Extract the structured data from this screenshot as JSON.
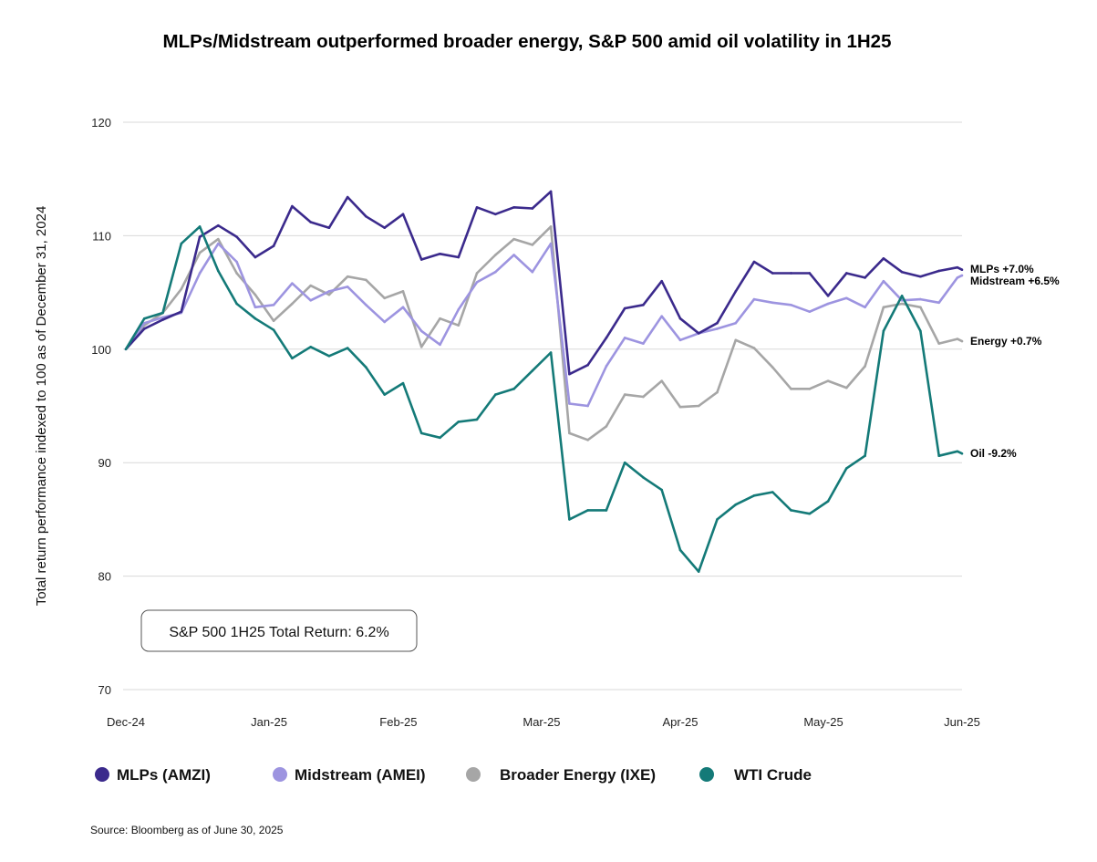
{
  "chart_data": {
    "type": "line",
    "title": "MLPs/Midstream outperformed broader energy, S&P 500 amid oil volatility in 1H25",
    "ylabel": "Total return performance indexed to 100 as of December 31, 2024",
    "xlabel": "",
    "ylim": [
      70,
      120
    ],
    "yticks": [
      "70",
      "80",
      "90",
      "100",
      "110",
      "120"
    ],
    "xlim": [
      "2024-12-31",
      "2025-06-30"
    ],
    "xticks": [
      {
        "date": "2024-12-31",
        "label": "Dec-24"
      },
      {
        "date": "2025-01-31",
        "label": "Jan-25"
      },
      {
        "date": "2025-02-28",
        "label": "Feb-25"
      },
      {
        "date": "2025-03-31",
        "label": "Mar-25"
      },
      {
        "date": "2025-04-30",
        "label": "Apr-25"
      },
      {
        "date": "2025-05-31",
        "label": "May-25"
      },
      {
        "date": "2025-06-30",
        "label": "Jun-25"
      }
    ],
    "grid": true,
    "legend_position": "bottom",
    "x": [
      "2024-12-31",
      "2025-01-04",
      "2025-01-08",
      "2025-01-12",
      "2025-01-16",
      "2025-01-20",
      "2025-01-24",
      "2025-01-28",
      "2025-02-01",
      "2025-02-05",
      "2025-02-09",
      "2025-02-13",
      "2025-02-17",
      "2025-02-21",
      "2025-02-25",
      "2025-03-01",
      "2025-03-05",
      "2025-03-09",
      "2025-03-13",
      "2025-03-17",
      "2025-03-21",
      "2025-03-25",
      "2025-03-29",
      "2025-04-02",
      "2025-04-06",
      "2025-04-10",
      "2025-04-14",
      "2025-04-18",
      "2025-04-22",
      "2025-04-26",
      "2025-04-30",
      "2025-05-04",
      "2025-05-08",
      "2025-05-12",
      "2025-05-16",
      "2025-05-20",
      "2025-05-24",
      "2025-05-28",
      "2025-06-01",
      "2025-06-05",
      "2025-06-09",
      "2025-06-13",
      "2025-06-17",
      "2025-06-21",
      "2025-06-25",
      "2025-06-29",
      "2025-06-30"
    ],
    "series": [
      {
        "name": "MLPs (AMZI)",
        "color": "#3b2a8c",
        "end_label": "MLPs +7.0%",
        "values": [
          100.0,
          101.8,
          102.6,
          103.3,
          109.9,
          110.9,
          109.9,
          108.1,
          109.1,
          112.6,
          111.2,
          110.7,
          113.4,
          111.7,
          110.7,
          111.9,
          107.9,
          108.4,
          108.1,
          112.5,
          111.9,
          112.5,
          112.4,
          113.9,
          97.8,
          98.6,
          101.0,
          103.6,
          103.9,
          106.0,
          102.7,
          101.4,
          102.3,
          105.1,
          107.7,
          106.7,
          106.7,
          106.7,
          104.7,
          106.7,
          106.3,
          108.0,
          106.8,
          106.4,
          106.9,
          107.2,
          107.0
        ]
      },
      {
        "name": "Midstream (AMEI)",
        "color": "#9d94e0",
        "end_label": "Midstream +6.5%",
        "values": [
          100.0,
          102.3,
          102.8,
          103.2,
          106.7,
          109.3,
          107.7,
          103.7,
          103.9,
          105.8,
          104.3,
          105.1,
          105.5,
          103.9,
          102.4,
          103.7,
          101.6,
          100.4,
          103.5,
          105.9,
          106.8,
          108.3,
          106.8,
          109.3,
          95.2,
          95.0,
          98.5,
          101.0,
          100.5,
          102.9,
          100.8,
          101.4,
          101.8,
          102.3,
          104.4,
          104.1,
          103.9,
          103.3,
          104.0,
          104.5,
          103.7,
          106.0,
          104.3,
          104.4,
          104.1,
          106.3,
          106.5
        ]
      },
      {
        "name": "Broader Energy (IXE)",
        "color": "#a6a6a6",
        "end_label": "Energy +0.7%",
        "values": [
          100.0,
          102.1,
          103.2,
          105.3,
          108.5,
          109.7,
          106.7,
          104.8,
          102.5,
          104.0,
          105.6,
          104.8,
          106.4,
          106.1,
          104.5,
          105.1,
          100.2,
          102.7,
          102.1,
          106.7,
          108.3,
          109.7,
          109.2,
          110.8,
          92.6,
          92.0,
          93.2,
          96.0,
          95.8,
          97.2,
          94.9,
          95.0,
          96.2,
          100.8,
          100.1,
          98.4,
          96.5,
          96.5,
          97.2,
          96.6,
          98.5,
          103.7,
          104.0,
          103.7,
          100.5,
          100.9,
          100.7
        ]
      },
      {
        "name": "WTI Crude",
        "color": "#147a78",
        "end_label": "Oil -9.2%",
        "values": [
          100.0,
          102.7,
          103.2,
          109.3,
          110.8,
          106.9,
          104.0,
          102.7,
          101.7,
          99.2,
          100.2,
          99.4,
          100.1,
          98.4,
          96.0,
          97.0,
          92.6,
          92.2,
          93.6,
          93.8,
          96.0,
          96.5,
          98.1,
          99.7,
          85.0,
          85.8,
          85.8,
          90.0,
          88.7,
          87.6,
          82.3,
          80.4,
          85.0,
          86.3,
          87.1,
          87.4,
          85.8,
          85.5,
          86.6,
          89.5,
          90.6,
          101.6,
          104.7,
          101.6,
          90.6,
          91.0,
          90.8
        ]
      }
    ],
    "annotations": [
      "S&P 500 1H25 Total Return: 6.2%"
    ],
    "source": "Source: Bloomberg as of June 30, 2025"
  }
}
